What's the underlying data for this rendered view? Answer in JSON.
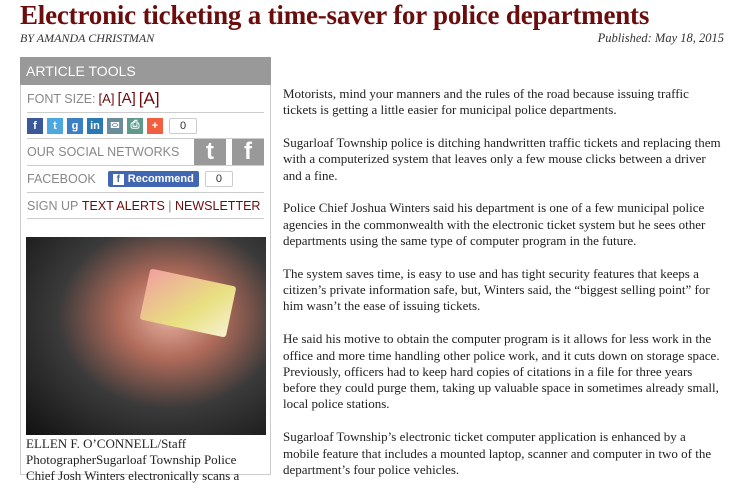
{
  "title": "Electronic ticketing a time-saver for police departments",
  "byline": "BY AMANDA CHRISTMAN",
  "published": "Published: May 18, 2015",
  "sidebar": {
    "header": "ARTICLE TOOLS",
    "font_size_label": "FONT SIZE:",
    "font_sizes": [
      "[A]",
      "[A]",
      "[A]"
    ],
    "share_icons": [
      "facebook-icon",
      "twitter-icon",
      "google-plus-icon",
      "linkedin-icon",
      "email-icon",
      "print-icon",
      "add-icon"
    ],
    "share_count": "0",
    "social_label": "OUR SOCIAL NETWORKS",
    "facebook_label": "FACEBOOK",
    "recommend_label": "Recommend",
    "recommend_count": "0",
    "signup_label": "SIGN UP",
    "text_alerts": "TEXT ALERTS",
    "separator": "|",
    "newsletter": "NEWSLETTER",
    "caption": "ELLEN F. O’CONNELL/Staff PhotographerSugarloaf Township Police Chief Josh Winters electronically scans a"
  },
  "article": {
    "paragraphs": [
      "Motorists, mind your manners and the rules of the road because issuing traffic tickets is getting a little easier for municipal police departments.",
      "Sugarloaf Township police is ditching handwritten traffic tickets and replacing them with a computerized system that leaves only a few mouse clicks between a driver and a fine.",
      "Police Chief Joshua Winters said his department is one of a few municipal police agencies in the commonwealth with the electronic ticket system but he sees other departments using the same type of computer program in the future.",
      "The system saves time, is easy to use and has tight security features that keeps a citizen’s private information safe, but, Winters said, the “biggest selling point” for him wasn’t the ease of issuing tickets.",
      "He said his motive to obtain the computer program is it allows for less work in the office and more time handling other police work, and it cuts down on storage space. Previously, officers had to keep hard copies of citations in a file for three years before they could purge them, taking up valuable space in sometimes already small, local police stations.",
      "Sugarloaf Township’s electronic ticket computer application is enhanced by a mobile feature that includes a mounted laptop, scanner and computer in two of the department’s four police vehicles."
    ]
  }
}
